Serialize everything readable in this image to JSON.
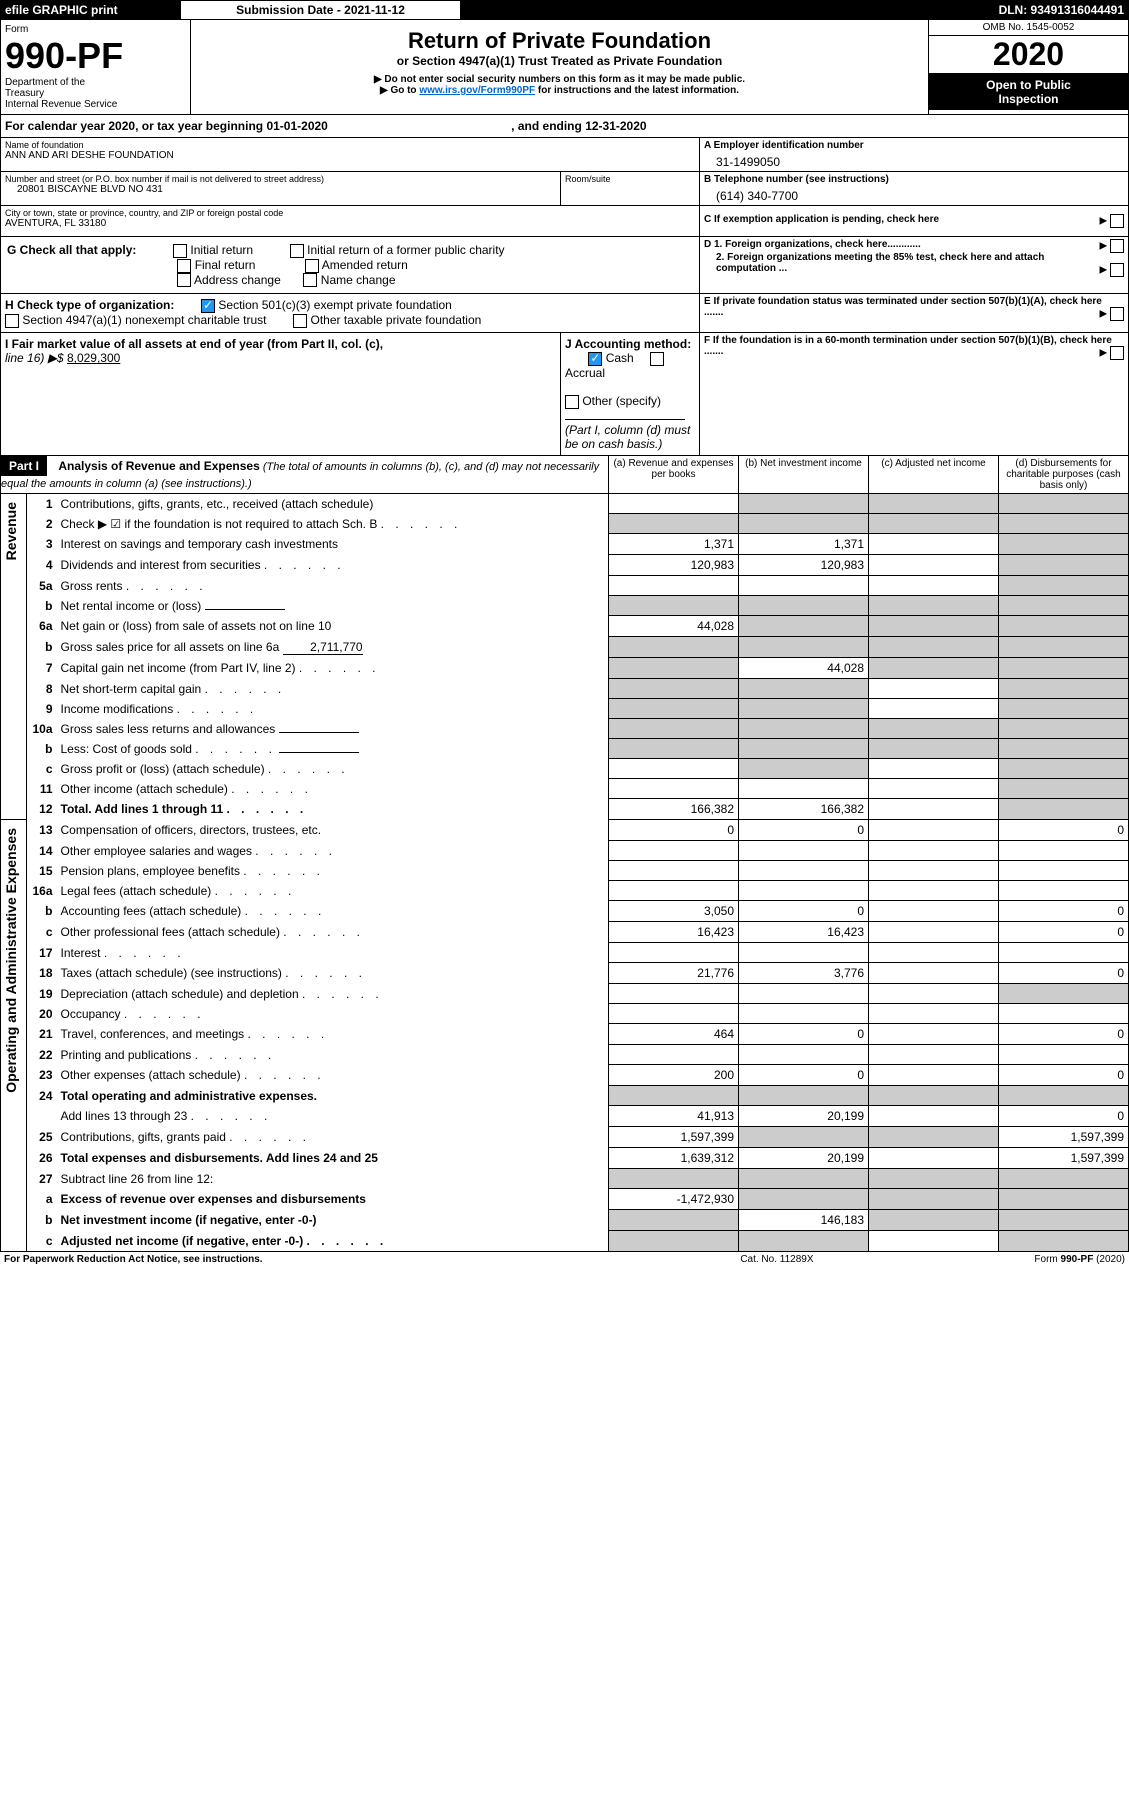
{
  "topbar": {
    "efile": "efile GRAPHIC print",
    "submission_label": "Submission Date - 2021-11-12",
    "dln_label": "DLN: 93491316044491"
  },
  "header": {
    "form_word": "Form",
    "form_num": "990-PF",
    "dept1": "Department of the",
    "dept2": "Treasury",
    "dept3": "Internal Revenue Service",
    "title": "Return of Private Foundation",
    "subtitle": "or Section 4947(a)(1) Trust Treated as Private Foundation",
    "note1": "▶ Do not enter social security numbers on this form as it may be made public.",
    "note2_pre": "▶ Go to ",
    "note2_link": "www.irs.gov/Form990PF",
    "note2_post": " for instructions and the latest information.",
    "omb": "OMB No. 1545-0052",
    "year": "2020",
    "open": "Open to Public",
    "inspection": "Inspection"
  },
  "calendar": {
    "prefix": "For calendar year 2020, or tax year beginning ",
    "begin": "01-01-2020",
    "mid": " , and ending ",
    "end": "12-31-2020"
  },
  "id": {
    "name_label": "Name of foundation",
    "name": "ANN AND ARI DESHE FOUNDATION",
    "addr_label": "Number and street (or P.O. box number if mail is not delivered to street address)",
    "addr": "20801 BISCAYNE BLVD NO 431",
    "room_label": "Room/suite",
    "city_label": "City or town, state or province, country, and ZIP or foreign postal code",
    "city": "AVENTURA, FL  33180",
    "ein_label": "A Employer identification number",
    "ein": "31-1499050",
    "phone_label": "B Telephone number (see instructions)",
    "phone": "(614) 340-7700",
    "c_label": "C If exemption application is pending, check here",
    "d1_label": "D 1. Foreign organizations, check here............",
    "d2_label": "2. Foreign organizations meeting the 85% test, check here and attach computation ...",
    "e_label": "E If private foundation status was terminated under section 507(b)(1)(A), check here .......",
    "f_label": "F  If the foundation is in a 60-month termination under section 507(b)(1)(B), check here .......",
    "g_label": "G Check all that apply:",
    "g_opts": [
      "Initial return",
      "Final return",
      "Address change",
      "Initial return of a former public charity",
      "Amended return",
      "Name change"
    ],
    "h_label": "H Check type of organization:",
    "h_501": "Section 501(c)(3) exempt private foundation",
    "h_4947": "Section 4947(a)(1) nonexempt charitable trust",
    "h_other": "Other taxable private foundation",
    "i_label": "I Fair market value of all assets at end of year (from Part II, col. (c),",
    "i_line": "line 16) ▶$ ",
    "i_val": "8,029,300",
    "j_label": "J Accounting method:",
    "j_cash": "Cash",
    "j_accrual": "Accrual",
    "j_other": "Other (specify)",
    "j_note": "(Part I, column (d) must be on cash basis.)"
  },
  "part1": {
    "label": "Part I",
    "title": "Analysis of Revenue and Expenses",
    "title_note": " (The total of amounts in columns (b), (c), and (d) may not necessarily equal the amounts in column (a) (see instructions).)",
    "col_a": "(a)   Revenue and expenses per books",
    "col_b": "(b)   Net investment income",
    "col_c": "(c)   Adjusted net income",
    "col_d": "(d)   Disbursements for charitable purposes (cash basis only)",
    "revenue_label": "Revenue",
    "expenses_label": "Operating and Administrative Expenses"
  },
  "rows": [
    {
      "n": "1",
      "t": "Contributions, gifts, grants, etc., received (attach schedule)",
      "a": "",
      "b": null,
      "c": null,
      "d": null
    },
    {
      "n": "2",
      "t": "Check ▶ ☑ if the foundation is not required to attach Sch. B",
      "dots": 1,
      "a": null,
      "b": null,
      "c": null,
      "d": null
    },
    {
      "n": "3",
      "t": "Interest on savings and temporary cash investments",
      "a": "1,371",
      "b": "1,371",
      "c": "",
      "d": null
    },
    {
      "n": "4",
      "t": "Dividends and interest from securities",
      "dots": 1,
      "a": "120,983",
      "b": "120,983",
      "c": "",
      "d": null
    },
    {
      "n": "5a",
      "t": "Gross rents",
      "dots": 1,
      "a": "",
      "b": "",
      "c": "",
      "d": null
    },
    {
      "n": "b",
      "t": "Net rental income or (loss)",
      "line": 1,
      "a": null,
      "b": null,
      "c": null,
      "d": null
    },
    {
      "n": "6a",
      "t": "Net gain or (loss) from sale of assets not on line 10",
      "a": "44,028",
      "b": null,
      "c": null,
      "d": null
    },
    {
      "n": "b",
      "t": "Gross sales price for all assets on line 6a",
      "line": 1,
      "lineval": "2,711,770",
      "a": null,
      "b": null,
      "c": null,
      "d": null
    },
    {
      "n": "7",
      "t": "Capital gain net income (from Part IV, line 2)",
      "dots": 1,
      "a": null,
      "b": "44,028",
      "c": null,
      "d": null
    },
    {
      "n": "8",
      "t": "Net short-term capital gain",
      "dots": 1,
      "a": null,
      "b": null,
      "c": "",
      "d": null
    },
    {
      "n": "9",
      "t": "Income modifications",
      "dots": 1,
      "a": null,
      "b": null,
      "c": "",
      "d": null
    },
    {
      "n": "10a",
      "t": "Gross sales less returns and allowances",
      "line": 1,
      "a": null,
      "b": null,
      "c": null,
      "d": null
    },
    {
      "n": "b",
      "t": "Less: Cost of goods sold",
      "dots": 1,
      "line": 1,
      "a": null,
      "b": null,
      "c": null,
      "d": null
    },
    {
      "n": "c",
      "t": "Gross profit or (loss) (attach schedule)",
      "dots": 1,
      "a": "",
      "b": null,
      "c": "",
      "d": null
    },
    {
      "n": "11",
      "t": "Other income (attach schedule)",
      "dots": 1,
      "a": "",
      "b": "",
      "c": "",
      "d": null
    },
    {
      "n": "12",
      "t": "Total. Add lines 1 through 11",
      "dots": 1,
      "bold": 1,
      "a": "166,382",
      "b": "166,382",
      "c": "",
      "d": null
    },
    {
      "n": "13",
      "t": "Compensation of officers, directors, trustees, etc.",
      "a": "0",
      "b": "0",
      "c": "",
      "d": "0"
    },
    {
      "n": "14",
      "t": "Other employee salaries and wages",
      "dots": 1,
      "a": "",
      "b": "",
      "c": "",
      "d": ""
    },
    {
      "n": "15",
      "t": "Pension plans, employee benefits",
      "dots": 1,
      "a": "",
      "b": "",
      "c": "",
      "d": ""
    },
    {
      "n": "16a",
      "t": "Legal fees (attach schedule)",
      "dots": 1,
      "a": "",
      "b": "",
      "c": "",
      "d": ""
    },
    {
      "n": "b",
      "t": "Accounting fees (attach schedule)",
      "dots": 1,
      "a": "3,050",
      "b": "0",
      "c": "",
      "d": "0"
    },
    {
      "n": "c",
      "t": "Other professional fees (attach schedule)",
      "dots": 1,
      "a": "16,423",
      "b": "16,423",
      "c": "",
      "d": "0"
    },
    {
      "n": "17",
      "t": "Interest",
      "dots": 1,
      "a": "",
      "b": "",
      "c": "",
      "d": ""
    },
    {
      "n": "18",
      "t": "Taxes (attach schedule) (see instructions)",
      "dots": 1,
      "a": "21,776",
      "b": "3,776",
      "c": "",
      "d": "0"
    },
    {
      "n": "19",
      "t": "Depreciation (attach schedule) and depletion",
      "dots": 1,
      "a": "",
      "b": "",
      "c": "",
      "d": null
    },
    {
      "n": "20",
      "t": "Occupancy",
      "dots": 1,
      "a": "",
      "b": "",
      "c": "",
      "d": ""
    },
    {
      "n": "21",
      "t": "Travel, conferences, and meetings",
      "dots": 1,
      "a": "464",
      "b": "0",
      "c": "",
      "d": "0"
    },
    {
      "n": "22",
      "t": "Printing and publications",
      "dots": 1,
      "a": "",
      "b": "",
      "c": "",
      "d": ""
    },
    {
      "n": "23",
      "t": "Other expenses (attach schedule)",
      "dots": 1,
      "a": "200",
      "b": "0",
      "c": "",
      "d": "0"
    },
    {
      "n": "24",
      "t": "Total operating and administrative expenses.",
      "bold": 1,
      "a": null,
      "b": null,
      "c": null,
      "d": null
    },
    {
      "n": "",
      "t": "Add lines 13 through 23",
      "dots": 1,
      "a": "41,913",
      "b": "20,199",
      "c": "",
      "d": "0"
    },
    {
      "n": "25",
      "t": "Contributions, gifts, grants paid",
      "dots": 1,
      "a": "1,597,399",
      "b": null,
      "c": null,
      "d": "1,597,399"
    },
    {
      "n": "26",
      "t": "Total expenses and disbursements. Add lines 24 and 25",
      "bold": 1,
      "a": "1,639,312",
      "b": "20,199",
      "c": "",
      "d": "1,597,399"
    },
    {
      "n": "27",
      "t": "Subtract line 26 from line 12:",
      "a": null,
      "b": null,
      "c": null,
      "d": null
    },
    {
      "n": "a",
      "t": "Excess of revenue over expenses and disbursements",
      "bold": 1,
      "a": "-1,472,930",
      "b": null,
      "c": null,
      "d": null
    },
    {
      "n": "b",
      "t": "Net investment income (if negative, enter -0-)",
      "bold": 1,
      "a": null,
      "b": "146,183",
      "c": null,
      "d": null
    },
    {
      "n": "c",
      "t": "Adjusted net income (if negative, enter -0-)",
      "dots": 1,
      "bold": 1,
      "a": null,
      "b": null,
      "c": "",
      "d": null
    }
  ],
  "footer": {
    "left": "For Paperwork Reduction Act Notice, see instructions.",
    "mid": "Cat. No. 11289X",
    "right": "Form 990-PF (2020)"
  },
  "colors": {
    "dark": "#000000",
    "link": "#0066cc",
    "grey": "#cccccc",
    "check": "#2196F3"
  }
}
